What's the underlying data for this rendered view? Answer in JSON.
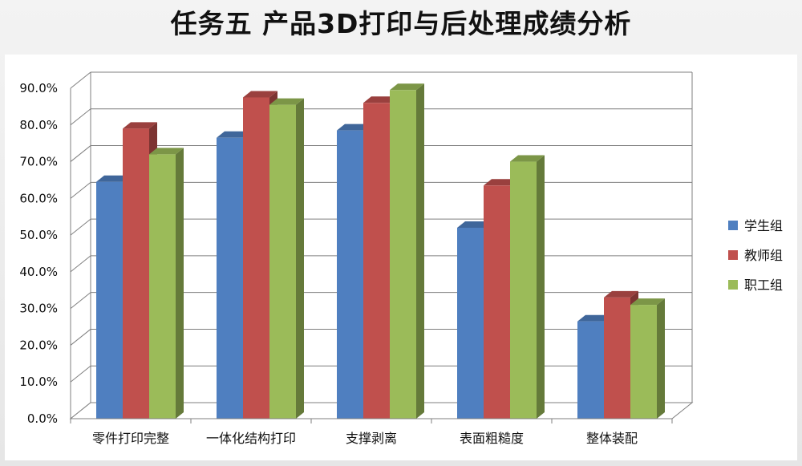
{
  "page": {
    "title": "任务五  产品3D打印与后处理成绩分析"
  },
  "chart_data": {
    "type": "bar",
    "title": "任务五  产品3D打印与后处理成绩分析",
    "xlabel": "",
    "ylabel": "",
    "categories": [
      "零件打印完整",
      "一体化结构打印",
      "支撑剥离",
      "表面粗糙度",
      "整体装配"
    ],
    "series": [
      {
        "name": "学生组",
        "values": [
          64.5,
          76.5,
          78.5,
          52.0,
          26.5
        ],
        "color": "#4f7fc0"
      },
      {
        "name": "教师组",
        "values": [
          79.0,
          87.5,
          86.0,
          63.5,
          33.0
        ],
        "color": "#c0504d"
      },
      {
        "name": "职工组",
        "values": [
          72.0,
          85.5,
          89.5,
          70.0,
          31.0
        ],
        "color": "#9bbb59"
      }
    ],
    "ylim": [
      0,
      90
    ],
    "yticks": [
      "0.0%",
      "10.0%",
      "20.0%",
      "30.0%",
      "40.0%",
      "50.0%",
      "60.0%",
      "70.0%",
      "80.0%",
      "90.0%"
    ],
    "grid": true,
    "legend_position": "right",
    "style": "3d-clustered-column"
  }
}
